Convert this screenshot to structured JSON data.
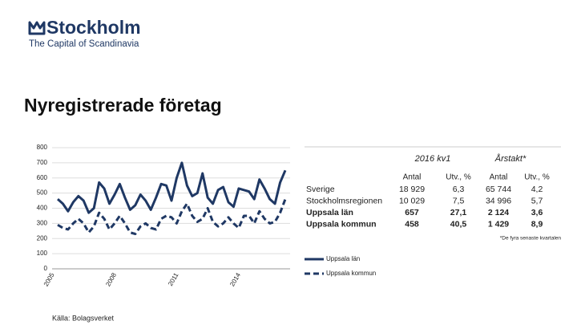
{
  "logo": {
    "name": "Stockholm",
    "tagline": "The Capital of Scandinavia"
  },
  "title": "Nyregistrerade företag",
  "chart_data": {
    "type": "line",
    "categories": [
      "2005",
      null,
      null,
      null,
      null,
      null,
      null,
      null,
      null,
      null,
      null,
      null,
      "2008",
      null,
      null,
      null,
      null,
      null,
      null,
      null,
      null,
      null,
      null,
      null,
      "2011",
      null,
      null,
      null,
      null,
      null,
      null,
      null,
      null,
      null,
      null,
      null,
      "2014",
      null,
      null,
      null,
      null,
      null,
      null,
      null,
      null
    ],
    "series": [
      {
        "name": "Uppsala län",
        "color": "#1f3864",
        "line_style": "solid",
        "values": [
          460,
          430,
          380,
          440,
          480,
          450,
          370,
          400,
          570,
          530,
          430,
          490,
          560,
          470,
          390,
          420,
          490,
          450,
          390,
          470,
          560,
          550,
          450,
          600,
          700,
          550,
          480,
          500,
          630,
          470,
          430,
          520,
          540,
          440,
          410,
          530,
          520,
          510,
          460,
          590,
          530,
          460,
          430,
          570,
          650
        ]
      },
      {
        "name": "Uppsala kommun",
        "color": "#1f3864",
        "line_style": "dashed",
        "values": [
          290,
          270,
          260,
          300,
          330,
          300,
          240,
          280,
          370,
          330,
          260,
          300,
          350,
          300,
          240,
          230,
          280,
          300,
          270,
          260,
          330,
          350,
          340,
          300,
          380,
          430,
          350,
          310,
          330,
          400,
          310,
          280,
          300,
          340,
          300,
          270,
          350,
          350,
          300,
          380,
          330,
          300,
          310,
          370,
          460
        ]
      }
    ],
    "ylim": [
      0,
      800
    ],
    "yticks": [
      0,
      100,
      200,
      300,
      400,
      500,
      600,
      700,
      800
    ],
    "grid": true
  },
  "table": {
    "period_header": "2016 kv1",
    "annual_header": "Årstakt*",
    "columns": [
      "Antal",
      "Utv., %",
      "Antal",
      "Utv., %"
    ],
    "rows": [
      [
        "Sverige",
        "18 929",
        "6,3",
        "65 744",
        "4,2"
      ],
      [
        "Stockholmsregionen",
        "10 029",
        "7,5",
        "34 996",
        "5,7"
      ],
      [
        "Uppsala län",
        "657",
        "27,1",
        "2 124",
        "3,6"
      ],
      [
        "Uppsala kommun",
        "458",
        "40,5",
        "1 429",
        "8,9"
      ]
    ],
    "footnote": "*De fyra senaste kvartalen"
  },
  "source": "Källa: Bolagsverket"
}
